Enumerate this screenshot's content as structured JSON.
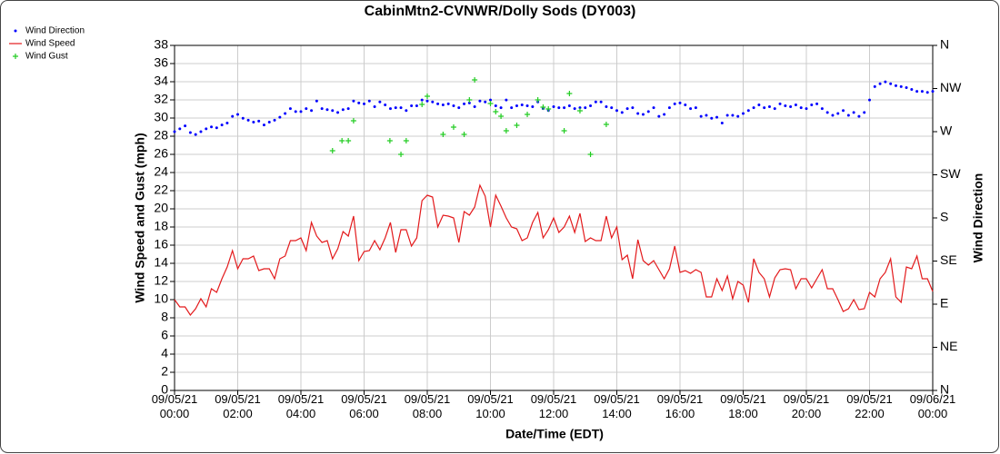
{
  "chart_data": {
    "type": "line",
    "title": "CabinMtn2-CVNWR/Dolly Sods (DY003)",
    "xlabel": "Date/Time (EDT)",
    "ylabel": "Wind Speed and Gust (mph)",
    "y2label": "Wind Direction",
    "legend": "upper left",
    "grid": true,
    "xlim": [
      0,
      1440
    ],
    "xticks": [
      {
        "value": 0,
        "label": "09/05/21\n00:00"
      },
      {
        "value": 120,
        "label": "09/05/21\n02:00"
      },
      {
        "value": 240,
        "label": "09/05/21\n04:00"
      },
      {
        "value": 360,
        "label": "09/05/21\n06:00"
      },
      {
        "value": 480,
        "label": "09/05/21\n08:00"
      },
      {
        "value": 600,
        "label": "09/05/21\n10:00"
      },
      {
        "value": 720,
        "label": "09/05/21\n12:00"
      },
      {
        "value": 840,
        "label": "09/05/21\n14:00"
      },
      {
        "value": 960,
        "label": "09/05/21\n16:00"
      },
      {
        "value": 1080,
        "label": "09/05/21\n18:00"
      },
      {
        "value": 1200,
        "label": "09/05/21\n20:00"
      },
      {
        "value": 1320,
        "label": "09/05/21\n22:00"
      },
      {
        "value": 1440,
        "label": "09/06/21\n00:00"
      }
    ],
    "ylim": [
      0,
      38
    ],
    "yticks": [
      0,
      2,
      4,
      6,
      8,
      10,
      12,
      14,
      16,
      18,
      20,
      22,
      24,
      26,
      28,
      30,
      32,
      34,
      36,
      38
    ],
    "y2lim": [
      0,
      360
    ],
    "y2ticks": [
      {
        "value": 0,
        "label": "N"
      },
      {
        "value": 45,
        "label": "NE"
      },
      {
        "value": 90,
        "label": "E"
      },
      {
        "value": 135,
        "label": "SE"
      },
      {
        "value": 180,
        "label": "S"
      },
      {
        "value": 225,
        "label": "SW"
      },
      {
        "value": 270,
        "label": "W"
      },
      {
        "value": 315,
        "label": "NW"
      },
      {
        "value": 360,
        "label": "N"
      }
    ],
    "x": [
      0,
      10,
      20,
      30,
      40,
      50,
      60,
      70,
      80,
      90,
      100,
      110,
      120,
      130,
      140,
      150,
      160,
      170,
      180,
      190,
      200,
      210,
      220,
      230,
      240,
      250,
      260,
      270,
      280,
      290,
      300,
      310,
      320,
      330,
      340,
      350,
      360,
      370,
      380,
      390,
      400,
      410,
      420,
      430,
      440,
      450,
      460,
      470,
      480,
      490,
      500,
      510,
      520,
      530,
      540,
      550,
      560,
      570,
      580,
      590,
      600,
      610,
      620,
      630,
      640,
      650,
      660,
      670,
      680,
      690,
      700,
      710,
      720,
      730,
      740,
      750,
      760,
      770,
      780,
      790,
      800,
      810,
      820,
      830,
      840,
      850,
      860,
      870,
      880,
      890,
      900,
      910,
      920,
      930,
      940,
      950,
      960,
      970,
      980,
      990,
      1000,
      1010,
      1020,
      1030,
      1040,
      1050,
      1060,
      1070,
      1080,
      1090,
      1100,
      1110,
      1120,
      1130,
      1140,
      1150,
      1160,
      1170,
      1180,
      1190,
      1200,
      1210,
      1220,
      1230,
      1240,
      1250,
      1260,
      1270,
      1280,
      1290,
      1300,
      1310,
      1320,
      1330,
      1340,
      1350,
      1360,
      1370,
      1380,
      1390,
      1400,
      1410,
      1420,
      1430,
      1440
    ],
    "series": [
      {
        "name": "Wind Direction",
        "color": "#0000ff",
        "axis": "y2",
        "marker": "dot",
        "values": [
          270,
          273,
          276,
          269,
          267,
          270,
          273,
          275,
          274,
          277,
          279,
          286,
          288,
          284,
          282,
          280,
          281,
          277,
          280,
          282,
          285,
          289,
          294,
          291,
          291,
          294,
          292,
          302,
          294,
          293,
          292,
          290,
          293,
          294,
          302,
          300,
          299,
          302,
          296,
          301,
          298,
          294,
          295,
          295,
          292,
          297,
          297,
          303,
          302,
          301,
          299,
          298,
          299,
          297,
          295,
          299,
          300,
          296,
          302,
          301,
          303,
          297,
          295,
          303,
          295,
          297,
          298,
          297,
          296,
          301,
          294,
          292,
          296,
          295,
          295,
          297,
          294,
          295,
          295,
          297,
          301,
          301,
          296,
          295,
          292,
          290,
          294,
          295,
          289,
          288,
          291,
          295,
          286,
          288,
          295,
          299,
          300,
          298,
          294,
          295,
          286,
          287,
          284,
          285,
          279,
          287,
          287,
          286,
          289,
          292,
          295,
          298,
          295,
          296,
          294,
          299,
          297,
          296,
          298,
          295,
          294,
          298,
          299,
          294,
          290,
          287,
          289,
          292,
          287,
          290,
          286,
          290,
          303,
          317,
          320,
          322,
          320,
          318,
          317,
          316,
          314,
          312,
          312,
          311,
          312
        ]
      },
      {
        "name": "Wind Speed",
        "color": "#e31a1c",
        "marker": "line",
        "values": [
          10.0,
          9.2,
          9.2,
          8.3,
          9.0,
          10.1,
          9.2,
          11.2,
          10.8,
          12.3,
          13.6,
          15.4,
          13.4,
          14.5,
          14.5,
          14.8,
          13.2,
          13.4,
          13.4,
          12.3,
          14.5,
          14.8,
          16.5,
          16.5,
          16.8,
          15.4,
          18.5,
          17.0,
          16.3,
          16.5,
          14.5,
          15.6,
          17.5,
          17.0,
          19.2,
          14.3,
          15.3,
          15.4,
          16.5,
          15.5,
          16.8,
          18.5,
          15.2,
          17.7,
          17.7,
          15.9,
          16.8,
          20.9,
          21.5,
          21.3,
          18.0,
          19.3,
          19.2,
          19.0,
          16.3,
          19.7,
          19.3,
          20.2,
          22.6,
          21.4,
          18.0,
          21.5,
          20.3,
          19.0,
          18.0,
          17.8,
          16.5,
          16.8,
          18.5,
          19.6,
          16.8,
          17.7,
          19.0,
          17.4,
          18.0,
          19.2,
          17.4,
          19.5,
          16.4,
          16.8,
          16.5,
          16.5,
          19.2,
          16.8,
          18.0,
          14.4,
          14.9,
          12.3,
          16.6,
          14.3,
          13.8,
          14.3,
          13.3,
          12.3,
          13.4,
          15.9,
          13.0,
          13.2,
          12.9,
          13.3,
          13.0,
          10.3,
          10.3,
          12.3,
          11.0,
          12.6,
          10.1,
          12.0,
          11.6,
          9.7,
          14.5,
          13.0,
          12.3,
          10.3,
          12.4,
          13.3,
          13.4,
          13.3,
          11.2,
          12.3,
          12.3,
          11.3,
          12.3,
          13.3,
          11.2,
          11.2,
          10.0,
          8.7,
          9.0,
          10.0,
          8.9,
          9.0,
          10.8,
          10.3,
          12.3,
          13.0,
          14.5,
          10.3,
          9.7,
          13.6,
          13.4,
          14.8,
          12.3,
          12.3,
          10.9
        ]
      },
      {
        "name": "Wind Gust",
        "color": "#22cc22",
        "marker": "plus",
        "x": [
          300,
          318,
          330,
          340,
          409,
          430,
          440,
          470,
          480,
          510,
          530,
          550,
          560,
          570,
          600,
          610,
          620,
          630,
          650,
          670,
          690,
          700,
          710,
          740,
          750,
          770,
          790,
          820
        ],
        "values": [
          26.4,
          27.5,
          27.5,
          29.7,
          27.5,
          26.0,
          27.5,
          31.5,
          32.4,
          28.2,
          29.0,
          28.2,
          32.0,
          34.2,
          31.6,
          30.7,
          30.2,
          28.6,
          29.2,
          30.4,
          32.0,
          31.2,
          31.0,
          28.6,
          32.7,
          30.8,
          26.0,
          29.3
        ]
      }
    ]
  }
}
